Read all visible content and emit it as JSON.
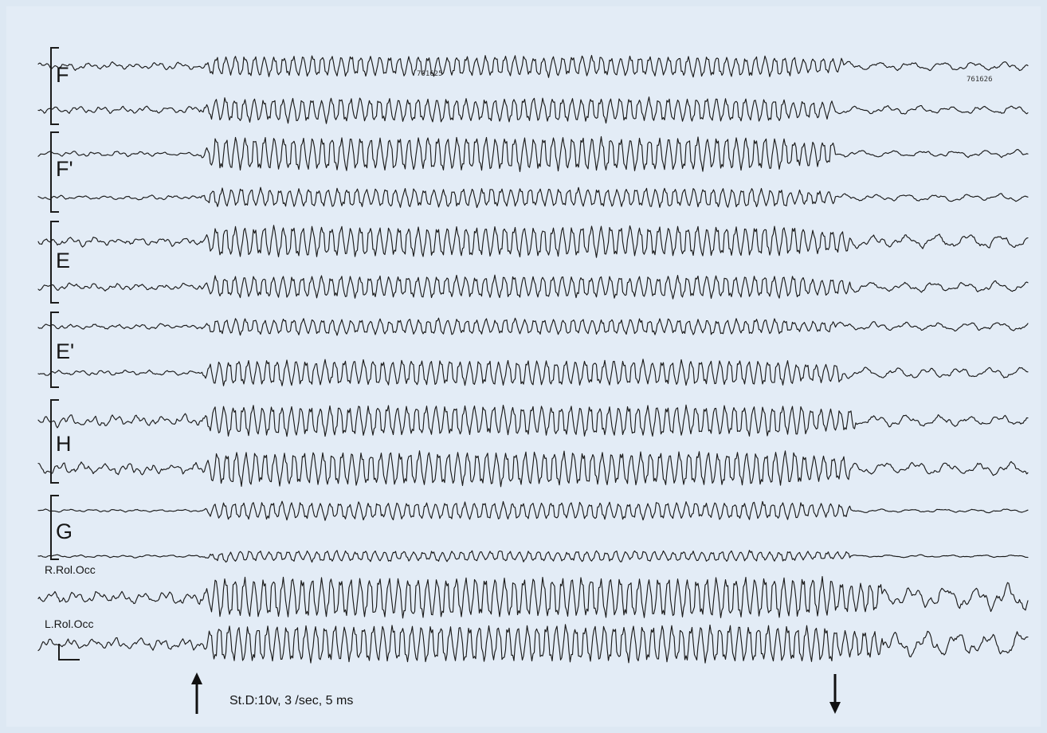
{
  "figure": {
    "groups": [
      {
        "label": "F",
        "top": 0
      },
      {
        "label": "F'",
        "top": 2
      },
      {
        "label": "E",
        "top": 4
      },
      {
        "label": "E'",
        "top": 6
      },
      {
        "label": "H",
        "top": 8
      },
      {
        "label": "G",
        "top": 10
      }
    ],
    "channels": [
      {
        "id": "ch1",
        "label": ""
      },
      {
        "id": "ch2",
        "label": ""
      },
      {
        "id": "ch3",
        "label": ""
      },
      {
        "id": "ch4",
        "label": ""
      },
      {
        "id": "ch5",
        "label": ""
      },
      {
        "id": "ch6",
        "label": ""
      },
      {
        "id": "ch7",
        "label": ""
      },
      {
        "id": "ch8",
        "label": ""
      },
      {
        "id": "ch9",
        "label": ""
      },
      {
        "id": "ch10",
        "label": ""
      },
      {
        "id": "ch11",
        "label": ""
      },
      {
        "id": "ch12",
        "label": ""
      },
      {
        "id": "ch13",
        "label": "R.Rol.Occ"
      },
      {
        "id": "ch14",
        "label": "L.Rol.Occ"
      }
    ],
    "reference_numbers": [
      "761625",
      "761626"
    ],
    "stimulation_label": "St.D:10v, 3 /sec, 5 ms",
    "markers": {
      "onset": "up-arrow",
      "offset": "down-arrow"
    }
  }
}
